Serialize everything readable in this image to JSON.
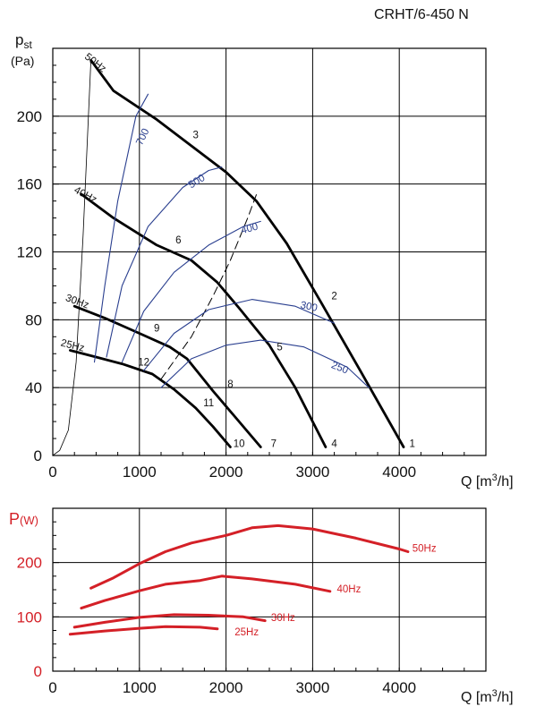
{
  "title": "CRHT/6-450 N",
  "chart_data": [
    {
      "type": "line",
      "ylabel_main": "p",
      "ylabel_sub": "st",
      "ylabel_unit": "(Pa)",
      "xlabel_main": "Q [m",
      "xlabel_sup": "3",
      "xlabel_end": "/h]",
      "xlim": [
        0,
        5000
      ],
      "ylim": [
        0,
        240
      ],
      "xticks": [
        "0",
        "1000",
        "2000",
        "3000",
        "4000"
      ],
      "yticks": [
        "0",
        "40",
        "80",
        "120",
        "160",
        "200"
      ],
      "grid": true,
      "series": [
        {
          "name": "50Hz",
          "color": "#000000",
          "points": [
            [
              440,
              233
            ],
            [
              700,
              215
            ],
            [
              1200,
              198
            ],
            [
              2000,
              167
            ],
            [
              2350,
              150
            ],
            [
              2700,
              125
            ],
            [
              3100,
              90
            ],
            [
              3550,
              50
            ],
            [
              4050,
              5
            ]
          ]
        },
        {
          "name": "40Hz",
          "color": "#000000",
          "points": [
            [
              330,
              154
            ],
            [
              700,
              140
            ],
            [
              1200,
              124
            ],
            [
              1600,
              115
            ],
            [
              1900,
              102
            ],
            [
              2150,
              87
            ],
            [
              2500,
              65
            ],
            [
              2800,
              40
            ],
            [
              3150,
              5
            ]
          ]
        },
        {
          "name": "30Hz",
          "color": "#000000",
          "points": [
            [
              250,
              88
            ],
            [
              600,
              81
            ],
            [
              1000,
              72
            ],
            [
              1350,
              64
            ],
            [
              1550,
              57
            ],
            [
              1850,
              38
            ],
            [
              2100,
              23
            ],
            [
              2400,
              5
            ]
          ]
        },
        {
          "name": "25Hz",
          "color": "#000000",
          "points": [
            [
              200,
              62
            ],
            [
              500,
              58
            ],
            [
              800,
              54
            ],
            [
              1150,
              48
            ],
            [
              1400,
              39
            ],
            [
              1650,
              28
            ],
            [
              1850,
              17
            ],
            [
              2050,
              5
            ]
          ]
        },
        {
          "name": "",
          "color": "#000000",
          "points": [
            [
              0,
              0
            ],
            [
              80,
              3
            ],
            [
              180,
              15
            ],
            [
              270,
              55
            ],
            [
              350,
              130
            ],
            [
              440,
              233
            ]
          ]
        },
        {
          "name": "",
          "color": "#000000",
          "points": [
            [
              1250,
              45
            ],
            [
              1600,
              70
            ],
            [
              1850,
              94
            ],
            [
              2050,
              115
            ],
            [
              2250,
              140
            ],
            [
              2360,
              155
            ]
          ]
        },
        {
          "name": "",
          "color": "#2a3f8f",
          "points": [
            [
              480,
              55
            ],
            [
              600,
              100
            ],
            [
              750,
              150
            ],
            [
              960,
              200
            ],
            [
              1100,
              213
            ]
          ]
        },
        {
          "name": "",
          "color": "#2a3f8f",
          "points": [
            [
              620,
              58
            ],
            [
              800,
              100
            ],
            [
              1100,
              135
            ],
            [
              1500,
              158
            ],
            [
              1800,
              168
            ],
            [
              1950,
              170
            ]
          ]
        },
        {
          "name": "",
          "color": "#2a3f8f",
          "points": [
            [
              800,
              55
            ],
            [
              1050,
              85
            ],
            [
              1400,
              108
            ],
            [
              1800,
              124
            ],
            [
              2200,
              135
            ],
            [
              2400,
              138
            ]
          ]
        },
        {
          "name": "",
          "color": "#2a3f8f",
          "points": [
            [
              1050,
              50
            ],
            [
              1400,
              72
            ],
            [
              1800,
              86
            ],
            [
              2300,
              92
            ],
            [
              2800,
              88
            ],
            [
              3250,
              78
            ]
          ]
        },
        {
          "name": "",
          "color": "#2a3f8f",
          "points": [
            [
              1250,
              40
            ],
            [
              1600,
              57
            ],
            [
              2000,
              65
            ],
            [
              2400,
              68
            ],
            [
              2900,
              64
            ],
            [
              3400,
              52
            ],
            [
              3650,
              40
            ]
          ]
        }
      ],
      "annotations": [
        {
          "text": "50Hz",
          "x": 470,
          "y": 230,
          "rotate": 38
        },
        {
          "text": "40Hz",
          "x": 360,
          "y": 152,
          "rotate": 28
        },
        {
          "text": "30Hz",
          "x": 270,
          "y": 89,
          "rotate": 20
        },
        {
          "text": "25Hz",
          "x": 220,
          "y": 63,
          "rotate": 14
        },
        {
          "text": "700",
          "x": 1070,
          "y": 187,
          "rotate": -64,
          "color": "#2a3f8f"
        },
        {
          "text": "500",
          "x": 1680,
          "y": 160,
          "rotate": -32,
          "color": "#2a3f8f"
        },
        {
          "text": "400",
          "x": 2280,
          "y": 132,
          "rotate": -15,
          "color": "#2a3f8f"
        },
        {
          "text": "300",
          "x": 2950,
          "y": 86,
          "rotate": 12,
          "color": "#2a3f8f"
        },
        {
          "text": "250",
          "x": 3300,
          "y": 50,
          "rotate": 22,
          "color": "#2a3f8f"
        },
        {
          "text": "1",
          "x": 4150,
          "y": 5
        },
        {
          "text": "2",
          "x": 3250,
          "y": 92
        },
        {
          "text": "3",
          "x": 1650,
          "y": 187
        },
        {
          "text": "4",
          "x": 3250,
          "y": 5
        },
        {
          "text": "5",
          "x": 2620,
          "y": 62
        },
        {
          "text": "6",
          "x": 1450,
          "y": 125
        },
        {
          "text": "7",
          "x": 2550,
          "y": 5
        },
        {
          "text": "8",
          "x": 2050,
          "y": 40
        },
        {
          "text": "9",
          "x": 1200,
          "y": 73
        },
        {
          "text": "10",
          "x": 2150,
          "y": 5
        },
        {
          "text": "11",
          "x": 1800,
          "y": 29
        },
        {
          "text": "12",
          "x": 1050,
          "y": 53
        }
      ]
    },
    {
      "type": "line",
      "ylabel_main": "P",
      "ylabel_unit": "(W)",
      "xlabel_main": "Q [m",
      "xlabel_sup": "3",
      "xlabel_end": "/h]",
      "xlim": [
        0,
        5000
      ],
      "ylim": [
        0,
        300
      ],
      "xticks": [
        "0",
        "1000",
        "2000",
        "3000",
        "4000"
      ],
      "yticks": [
        "0",
        "100",
        "200"
      ],
      "grid": true,
      "series": [
        {
          "name": "50Hz",
          "color": "#d42027",
          "points": [
            [
              440,
              153
            ],
            [
              700,
              172
            ],
            [
              1000,
              198
            ],
            [
              1300,
              220
            ],
            [
              1600,
              236
            ],
            [
              2000,
              250
            ],
            [
              2300,
              264
            ],
            [
              2600,
              268
            ],
            [
              3000,
              262
            ],
            [
              3500,
              245
            ],
            [
              4000,
              225
            ],
            [
              4100,
              220
            ]
          ]
        },
        {
          "name": "40Hz",
          "color": "#d42027",
          "points": [
            [
              330,
              116
            ],
            [
              600,
              130
            ],
            [
              1000,
              148
            ],
            [
              1300,
              160
            ],
            [
              1700,
              167
            ],
            [
              1950,
              175
            ],
            [
              2300,
              170
            ],
            [
              2800,
              160
            ],
            [
              3200,
              147
            ]
          ]
        },
        {
          "name": "30Hz",
          "color": "#d42027",
          "points": [
            [
              250,
              81
            ],
            [
              600,
              90
            ],
            [
              1000,
              99
            ],
            [
              1400,
              104
            ],
            [
              1800,
              103
            ],
            [
              2200,
              100
            ],
            [
              2450,
              93
            ]
          ]
        },
        {
          "name": "25Hz",
          "color": "#d42027",
          "points": [
            [
              200,
              68
            ],
            [
              600,
              74
            ],
            [
              1000,
              79
            ],
            [
              1300,
              82
            ],
            [
              1700,
              81
            ],
            [
              1900,
              78
            ]
          ]
        }
      ],
      "annotations": [
        {
          "text": "50Hz",
          "x": 4150,
          "y": 220,
          "color": "#d42027"
        },
        {
          "text": "40Hz",
          "x": 3280,
          "y": 145,
          "color": "#d42027"
        },
        {
          "text": "30Hz",
          "x": 2520,
          "y": 92,
          "color": "#d42027"
        },
        {
          "text": "25Hz",
          "x": 2100,
          "y": 66,
          "color": "#d42027"
        }
      ]
    }
  ]
}
